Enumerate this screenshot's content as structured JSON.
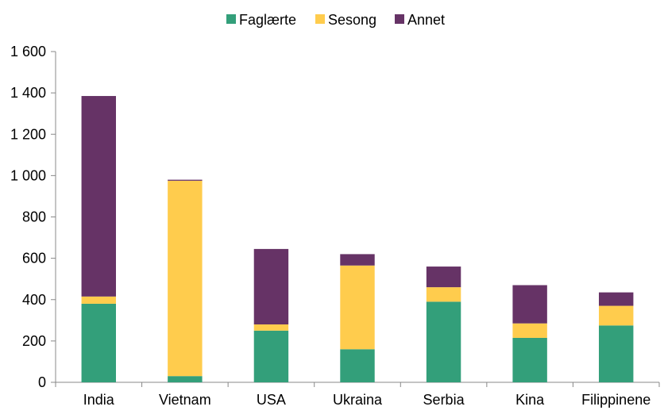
{
  "chart_data": {
    "type": "bar",
    "stacked": true,
    "categories": [
      "India",
      "Vietnam",
      "USA",
      "Ukraina",
      "Serbia",
      "Kina",
      "Filippinene"
    ],
    "series": [
      {
        "name": "Faglærte",
        "color": "#339f7a",
        "values": [
          380,
          30,
          250,
          160,
          390,
          215,
          275
        ]
      },
      {
        "name": "Sesong",
        "color": "#ffcc4d",
        "values": [
          35,
          945,
          30,
          405,
          70,
          70,
          95
        ]
      },
      {
        "name": "Annet",
        "color": "#663366",
        "values": [
          970,
          5,
          365,
          55,
          100,
          185,
          65
        ]
      }
    ],
    "y_ticks": [
      "0",
      "200",
      "400",
      "600",
      "800",
      "1 000",
      "1 200",
      "1 400",
      "1 600"
    ],
    "ylim": [
      0,
      1600
    ],
    "y_step": 200,
    "legend_position": "top-center",
    "grid": false
  }
}
